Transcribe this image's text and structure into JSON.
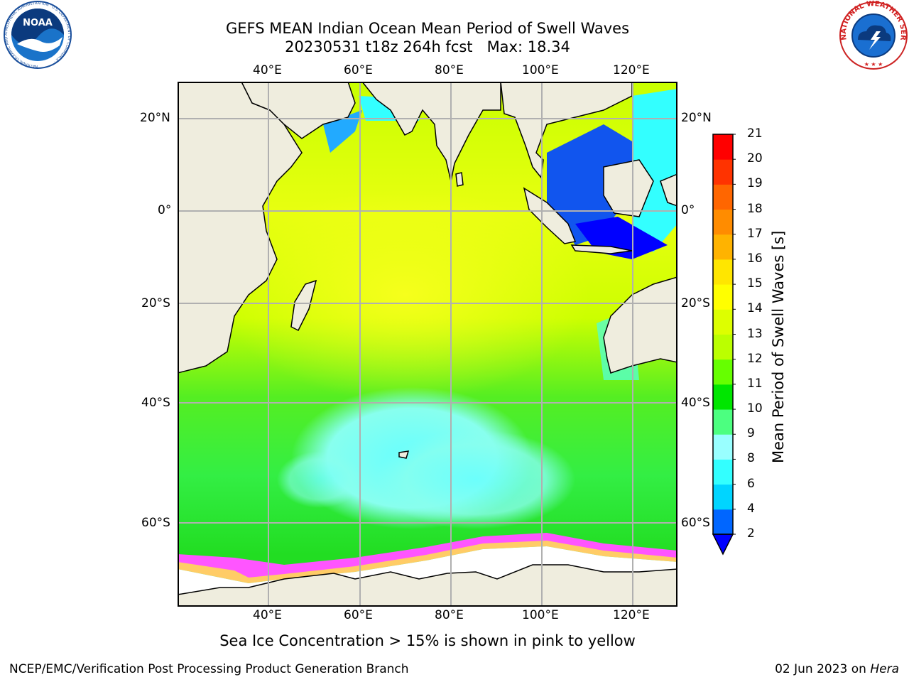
{
  "title": {
    "line1": "GEFS MEAN Indian Ocean Mean Period of Swell Waves",
    "line2": "20230531 t18z 264h fcst   Max: 18.34"
  },
  "map": {
    "lon_ticks_top": [
      "40°E",
      "60°E",
      "80°E",
      "100°E",
      "120°E"
    ],
    "lon_ticks_bottom": [
      "40°E",
      "60°E",
      "80°E",
      "100°E",
      "120°E"
    ],
    "lat_ticks_left": [
      "20°N",
      "0°",
      "20°S",
      "40°S",
      "60°S"
    ],
    "lat_ticks_right": [
      "20°N",
      "0°",
      "20°S",
      "40°S",
      "60°S"
    ],
    "land_color": "#efedde",
    "grid_color": "#b0b0b0"
  },
  "colorbar": {
    "label": "Mean Period of Swell Waves [s]",
    "ticks": [
      "2",
      "4",
      "6",
      "8",
      "9",
      "10",
      "11",
      "12",
      "13",
      "14",
      "15",
      "16",
      "17",
      "18",
      "19",
      "20",
      "21"
    ],
    "colors": [
      "#0066ff",
      "#00d5ff",
      "#33ffff",
      "#99ffff",
      "#4cff80",
      "#00e600",
      "#66ff00",
      "#bbff00",
      "#ddff00",
      "#ffff00",
      "#ffe600",
      "#ffb300",
      "#ff8c00",
      "#ff6600",
      "#ff3300",
      "#ff0000"
    ],
    "under_color": "#0000ff"
  },
  "note": "Sea Ice Concentration > 15% is shown in pink to yellow",
  "footer": {
    "left": "NCEP/EMC/Verification Post Processing Product Generation Branch",
    "date": "02 Jun 2023 on ",
    "host": "Hera"
  },
  "logos": {
    "noaa_text": "NOAA",
    "noaa_ring": "NATIONAL OCEANIC AND ATMOSPHERIC ADMINISTRATION · U.S. DEPARTMENT OF COMMERCE ·",
    "nws_ring": "NATIONAL WEATHER SERVICE"
  }
}
